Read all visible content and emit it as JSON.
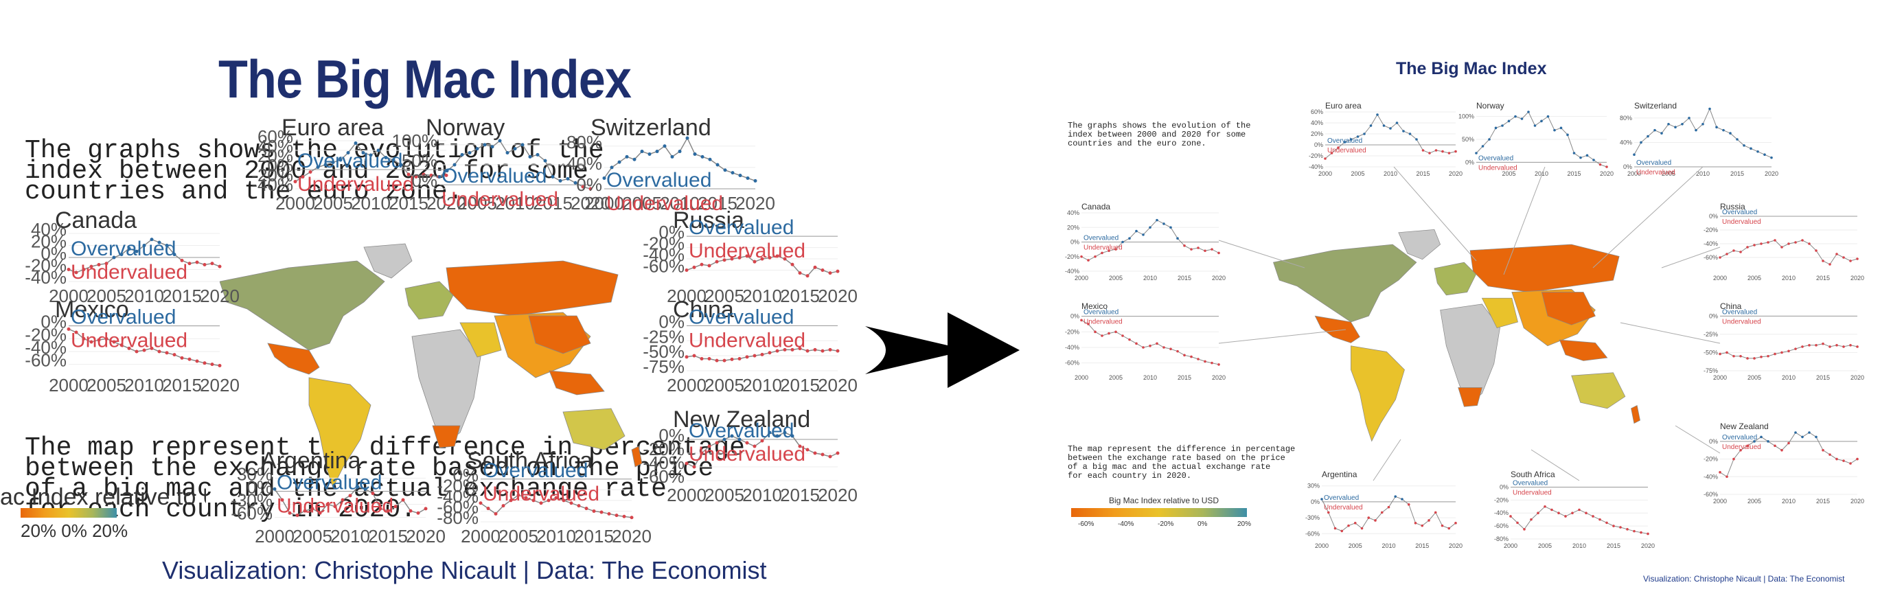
{
  "title": "The Big Mac Index",
  "description": "The graphs shows the evolution of the\nindex between 2000 and 2020 for some\ncountries and the euro zone.",
  "map_text": "The map represent the difference in percentage\nbetween the exchange rate based on the price\nof a big mac and the actual exchange rate\nfor each country in 2020.",
  "caption": "Visualization: Christophe Nicault | Data: The Economist",
  "legend": {
    "title": "Big Mac Index relative to USD",
    "ticks": [
      "-60%",
      "-40%",
      "-20%",
      "0%",
      "20%"
    ],
    "left_title": "ac Index relative to USD",
    "left_ticks": [
      "20%",
      "0%",
      "20%"
    ]
  },
  "labels": {
    "overvalued": "Overvalued",
    "undervalued": "Undervalued"
  },
  "colors": {
    "title": "#1e2f6e",
    "overvalued": "#2c6aa0",
    "undervalued": "#d6454c",
    "scale_low": "#e8670b",
    "scale_mid": "#e9c22b",
    "scale_high": "#3e8fa7",
    "no_data": "#c8c8c8"
  },
  "chart_data": [
    {
      "type": "line",
      "title": "Euro area",
      "x": [
        2000,
        2001,
        2002,
        2003,
        2004,
        2005,
        2006,
        2007,
        2008,
        2009,
        2010,
        2011,
        2012,
        2013,
        2014,
        2015,
        2016,
        2017,
        2018,
        2019,
        2020
      ],
      "y": [
        -25,
        -15,
        -5,
        5,
        10,
        15,
        20,
        35,
        55,
        35,
        30,
        40,
        25,
        20,
        10,
        -10,
        -15,
        -10,
        -12,
        -15,
        -12
      ],
      "ylim": [
        -40,
        60
      ],
      "yticks": [
        "60%",
        "40%",
        "20%",
        "0%",
        "-20%",
        "-40%"
      ],
      "xticks": [
        "2000",
        "2005",
        "2010",
        "2015",
        "2020"
      ]
    },
    {
      "type": "line",
      "title": "Norway",
      "x": [
        2000,
        2001,
        2002,
        2003,
        2004,
        2005,
        2006,
        2007,
        2008,
        2009,
        2010,
        2011,
        2012,
        2013,
        2014,
        2015,
        2016,
        2017,
        2018,
        2019,
        2020
      ],
      "y": [
        20,
        35,
        50,
        75,
        80,
        90,
        100,
        95,
        110,
        80,
        90,
        100,
        70,
        75,
        60,
        20,
        10,
        15,
        5,
        -5,
        -10
      ],
      "ylim": [
        -10,
        110
      ],
      "yticks": [
        "100%",
        "50%",
        "0%"
      ],
      "xticks": [
        "2005",
        "2010",
        "2015",
        "2020"
      ]
    },
    {
      "type": "line",
      "title": "Switzerland",
      "x": [
        2000,
        2001,
        2002,
        2003,
        2004,
        2005,
        2006,
        2007,
        2008,
        2009,
        2010,
        2011,
        2012,
        2013,
        2014,
        2015,
        2016,
        2017,
        2018,
        2019,
        2020
      ],
      "y": [
        20,
        40,
        50,
        60,
        55,
        70,
        65,
        70,
        80,
        60,
        70,
        95,
        65,
        60,
        55,
        45,
        35,
        30,
        25,
        20,
        15
      ],
      "ylim": [
        0,
        90
      ],
      "yticks": [
        "80%",
        "40%",
        "0%"
      ],
      "xticks": [
        "2000",
        "2005",
        "2010",
        "2015",
        "2020"
      ]
    },
    {
      "type": "line",
      "title": "Canada",
      "x": [
        2000,
        2001,
        2002,
        2003,
        2004,
        2005,
        2006,
        2007,
        2008,
        2009,
        2010,
        2011,
        2012,
        2013,
        2014,
        2015,
        2016,
        2017,
        2018,
        2019,
        2020
      ],
      "y": [
        -20,
        -25,
        -20,
        -15,
        -12,
        -10,
        0,
        5,
        15,
        10,
        20,
        30,
        25,
        20,
        5,
        -5,
        -10,
        -8,
        -12,
        -10,
        -15
      ],
      "ylim": [
        -40,
        40
      ],
      "yticks": [
        "40%",
        "20%",
        "0%",
        "-20%",
        "-40%"
      ],
      "xticks": [
        "2000",
        "2005",
        "2010",
        "2015",
        "2020"
      ]
    },
    {
      "type": "line",
      "title": "Russia",
      "x": [
        2000,
        2001,
        2002,
        2003,
        2004,
        2005,
        2006,
        2007,
        2008,
        2009,
        2010,
        2011,
        2012,
        2013,
        2014,
        2015,
        2016,
        2017,
        2018,
        2019,
        2020
      ],
      "y": [
        -60,
        -55,
        -50,
        -52,
        -45,
        -42,
        -40,
        -38,
        -35,
        -45,
        -40,
        -38,
        -35,
        -40,
        -50,
        -65,
        -70,
        -55,
        -60,
        -65,
        -62
      ],
      "ylim": [
        -80,
        5
      ],
      "yticks": [
        "0%",
        "-20%",
        "-40%",
        "-60%"
      ],
      "xticks": [
        "2000",
        "2005",
        "2010",
        "2015",
        "2020"
      ]
    },
    {
      "type": "line",
      "title": "Mexico",
      "x": [
        2000,
        2001,
        2002,
        2003,
        2004,
        2005,
        2006,
        2007,
        2008,
        2009,
        2010,
        2011,
        2012,
        2013,
        2014,
        2015,
        2016,
        2017,
        2018,
        2019,
        2020
      ],
      "y": [
        -5,
        -10,
        -20,
        -25,
        -22,
        -20,
        -25,
        -30,
        -35,
        -40,
        -38,
        -35,
        -40,
        -42,
        -45,
        -50,
        -52,
        -55,
        -58,
        -60,
        -62
      ],
      "ylim": [
        -70,
        5
      ],
      "yticks": [
        "0%",
        "-20%",
        "-40%",
        "-60%"
      ],
      "xticks": [
        "2000",
        "2005",
        "2010",
        "2015",
        "2020"
      ]
    },
    {
      "type": "line",
      "title": "China",
      "x": [
        2000,
        2001,
        2002,
        2003,
        2004,
        2005,
        2006,
        2007,
        2008,
        2009,
        2010,
        2011,
        2012,
        2013,
        2014,
        2015,
        2016,
        2017,
        2018,
        2019,
        2020
      ],
      "y": [
        -52,
        -50,
        -55,
        -55,
        -58,
        -58,
        -56,
        -55,
        -52,
        -50,
        -48,
        -45,
        -42,
        -40,
        -40,
        -38,
        -42,
        -40,
        -42,
        -40,
        -42
      ],
      "ylim": [
        -75,
        5
      ],
      "yticks": [
        "0%",
        "-25%",
        "-50%",
        "-75%"
      ],
      "xticks": [
        "2000",
        "2005",
        "2010",
        "2015",
        "2020"
      ]
    },
    {
      "type": "line",
      "title": "New Zealand",
      "x": [
        2000,
        2001,
        2002,
        2003,
        2004,
        2005,
        2006,
        2007,
        2008,
        2009,
        2010,
        2011,
        2012,
        2013,
        2014,
        2015,
        2016,
        2017,
        2018,
        2019,
        2020
      ],
      "y": [
        -35,
        -40,
        -20,
        -10,
        -5,
        0,
        5,
        0,
        -5,
        -10,
        -2,
        10,
        5,
        10,
        5,
        -10,
        -15,
        -20,
        -22,
        -25,
        -20
      ],
      "ylim": [
        -60,
        10
      ],
      "yticks": [
        "0%",
        "-20%",
        "-40%",
        "-60%"
      ],
      "xticks": [
        "2000",
        "2005",
        "2010",
        "2015",
        "2020"
      ]
    },
    {
      "type": "line",
      "title": "Argentina",
      "x": [
        2000,
        2001,
        2002,
        2003,
        2004,
        2005,
        2006,
        2007,
        2008,
        2009,
        2010,
        2011,
        2012,
        2013,
        2014,
        2015,
        2016,
        2017,
        2018,
        2019,
        2020
      ],
      "y": [
        5,
        -20,
        -50,
        -55,
        -45,
        -40,
        -50,
        -30,
        -35,
        -20,
        -10,
        10,
        5,
        -5,
        -40,
        -45,
        -35,
        -20,
        -45,
        -50,
        -40
      ],
      "ylim": [
        -70,
        40
      ],
      "yticks": [
        "30%",
        "0%",
        "-30%",
        "-60%"
      ],
      "xticks": [
        "2000",
        "2005",
        "2010",
        "2015",
        "2020"
      ]
    },
    {
      "type": "line",
      "title": "South Africa",
      "x": [
        2000,
        2001,
        2002,
        2003,
        2004,
        2005,
        2006,
        2007,
        2008,
        2009,
        2010,
        2011,
        2012,
        2013,
        2014,
        2015,
        2016,
        2017,
        2018,
        2019,
        2020
      ],
      "y": [
        -45,
        -55,
        -65,
        -50,
        -40,
        -30,
        -35,
        -40,
        -45,
        -40,
        -35,
        -40,
        -45,
        -50,
        -55,
        -60,
        -62,
        -65,
        -68,
        -70,
        -72
      ],
      "ylim": [
        -80,
        10
      ],
      "yticks": [
        "0%",
        "-20%",
        "-40%",
        "-60%",
        "-80%"
      ],
      "xticks": [
        "2000",
        "2005",
        "2010",
        "2015",
        "2020"
      ]
    }
  ]
}
